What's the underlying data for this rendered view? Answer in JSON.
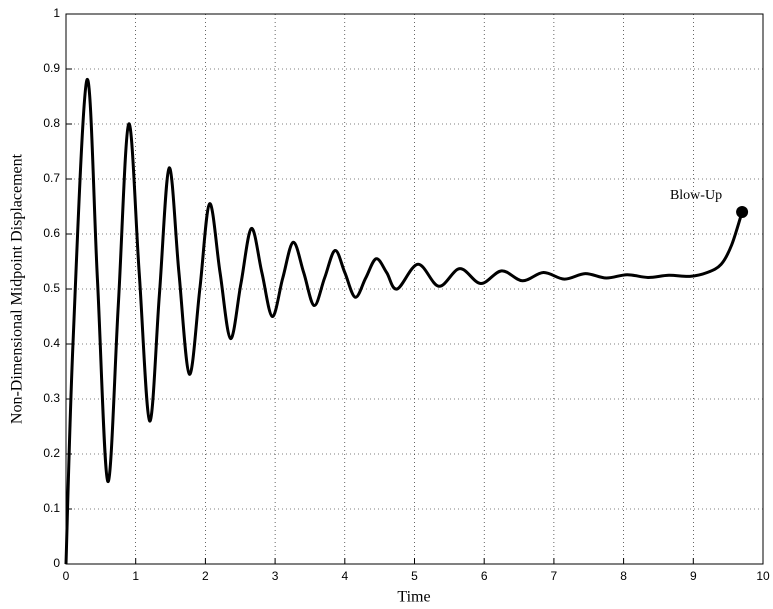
{
  "chart_data": {
    "type": "line",
    "xlabel": "Time",
    "ylabel": "Non-Dimensional Midpoint Displacement",
    "xlim": [
      0,
      10
    ],
    "xticks": [
      0,
      1,
      2,
      3,
      4,
      5,
      6,
      7,
      8,
      9,
      10
    ],
    "ylim": [
      0,
      1
    ],
    "yticks": [
      0,
      0.1,
      0.2,
      0.3,
      0.4,
      0.5,
      0.6,
      0.7,
      0.8,
      0.9,
      1
    ],
    "grid": true,
    "series": [
      {
        "color": "#000000",
        "x": [
          0,
          0.1,
          0.3,
          0.45,
          0.6,
          0.75,
          0.9,
          1.05,
          1.2,
          1.34,
          1.48,
          1.62,
          1.77,
          1.92,
          2.06,
          2.21,
          2.36,
          2.51,
          2.66,
          2.81,
          2.96,
          3.11,
          3.26,
          3.41,
          3.56,
          3.71,
          3.86,
          4.0,
          4.15,
          4.3,
          4.45,
          4.6,
          4.75,
          5.05,
          5.35,
          5.65,
          5.95,
          6.25,
          6.55,
          6.85,
          7.15,
          7.45,
          7.75,
          8.05,
          8.35,
          8.65,
          8.95,
          9.2,
          9.4,
          9.55,
          9.7
        ],
        "values": [
          0,
          0.4,
          0.88,
          0.52,
          0.15,
          0.47,
          0.8,
          0.53,
          0.26,
          0.49,
          0.72,
          0.53,
          0.345,
          0.5,
          0.655,
          0.53,
          0.41,
          0.51,
          0.61,
          0.53,
          0.45,
          0.52,
          0.585,
          0.53,
          0.47,
          0.52,
          0.57,
          0.53,
          0.485,
          0.52,
          0.555,
          0.53,
          0.5,
          0.545,
          0.505,
          0.537,
          0.51,
          0.533,
          0.515,
          0.53,
          0.518,
          0.528,
          0.52,
          0.526,
          0.521,
          0.525,
          0.523,
          0.53,
          0.545,
          0.58,
          0.64
        ]
      }
    ],
    "annotation": {
      "text": "Blow-Up",
      "x": 9.7,
      "y": 0.64
    }
  }
}
